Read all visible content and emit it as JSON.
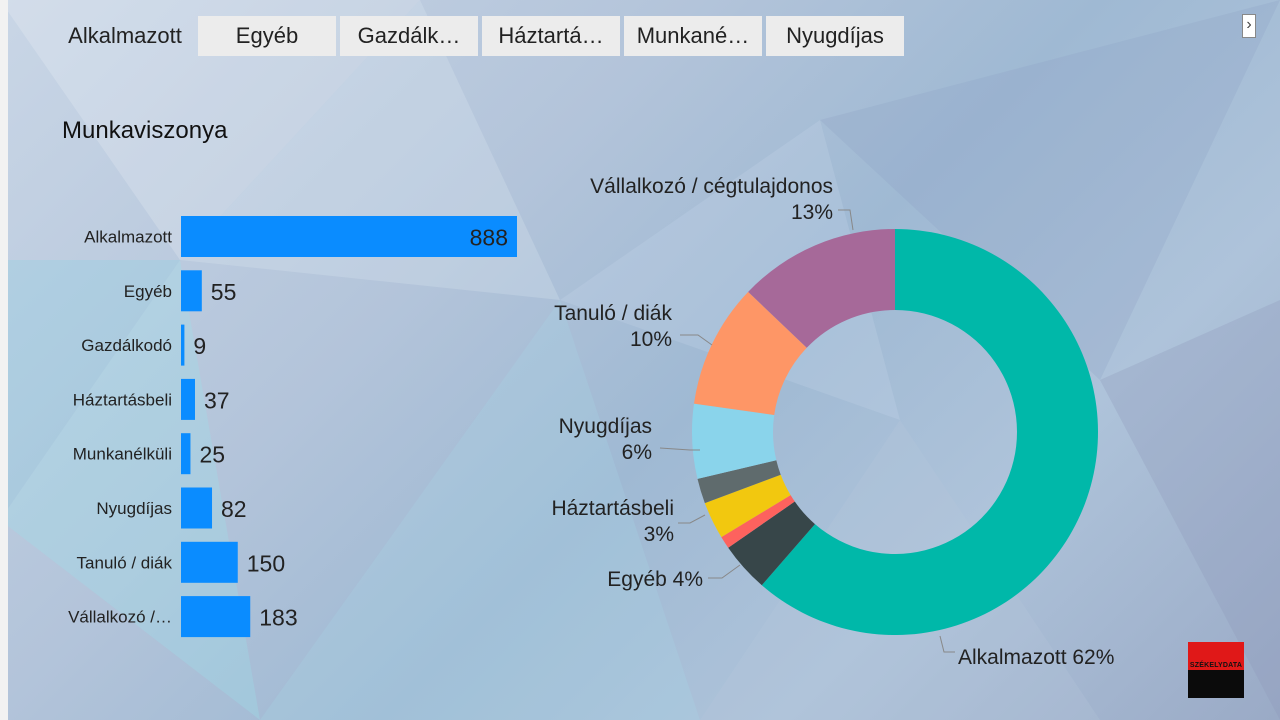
{
  "tabs": [
    {
      "label": "Alkalmazott",
      "active": true
    },
    {
      "label": "Egyéb",
      "active": false
    },
    {
      "label": "Gazdálk…",
      "active": false
    },
    {
      "label": "Háztartá…",
      "active": false
    },
    {
      "label": "Munkané…",
      "active": false
    },
    {
      "label": "Nyugdíjas",
      "active": false
    }
  ],
  "nav_next_icon": "chevron-right-icon",
  "page_title": "Munkaviszonya",
  "logo_text": "SZÉKELYDATA",
  "chart_data": [
    {
      "type": "bar",
      "orientation": "horizontal",
      "categories": [
        "Alkalmazott",
        "Egyéb",
        "Gazdálkodó",
        "Háztartásbeli",
        "Munkanélküli",
        "Nyugdíjas",
        "Tanuló / diák",
        "Vállalkozó /…"
      ],
      "values": [
        888,
        55,
        9,
        37,
        25,
        82,
        150,
        183
      ],
      "color": "#0a8cff",
      "title": ""
    },
    {
      "type": "pie",
      "donut": true,
      "slices": [
        {
          "label": "Alkalmazott",
          "value": 62,
          "display": "Alkalmazott 62%",
          "color": "#00b8a9"
        },
        {
          "label": "Egyéb",
          "value": 4,
          "display": "Egyéb 4%",
          "color": "#374649"
        },
        {
          "label": "Gazdálkodó",
          "value": 1,
          "display": "",
          "color": "#fd625e"
        },
        {
          "label": "Háztartásbeli",
          "value": 3,
          "display": "Háztartásbeli 3%",
          "color": "#f2c80f"
        },
        {
          "label": "Munkanélküli",
          "value": 2,
          "display": "",
          "color": "#5f6b6d"
        },
        {
          "label": "Nyugdíjas",
          "value": 6,
          "display": "Nyugdíjas 6%",
          "color": "#8ad4eb"
        },
        {
          "label": "Tanuló / diák",
          "value": 10,
          "display": "Tanuló / diák 10%",
          "color": "#fe9666"
        },
        {
          "label": "Vállalkozó / cégtulajdonos",
          "value": 13,
          "display": "Vállalkozó / cégtulajdonos 13%",
          "color": "#a66999"
        }
      ]
    }
  ]
}
